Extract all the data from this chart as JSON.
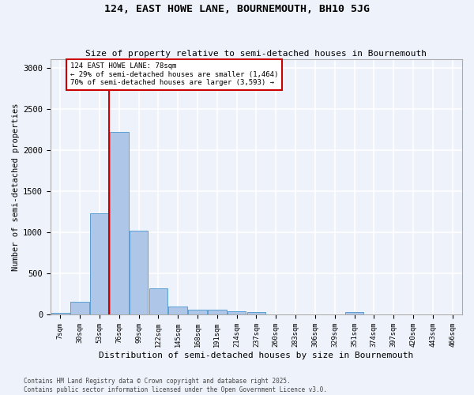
{
  "title": "124, EAST HOWE LANE, BOURNEMOUTH, BH10 5JG",
  "subtitle": "Size of property relative to semi-detached houses in Bournemouth",
  "xlabel": "Distribution of semi-detached houses by size in Bournemouth",
  "ylabel": "Number of semi-detached properties",
  "footnote": "Contains HM Land Registry data © Crown copyright and database right 2025.\nContains public sector information licensed under the Open Government Licence v3.0.",
  "bin_labels": [
    "7sqm",
    "30sqm",
    "53sqm",
    "76sqm",
    "99sqm",
    "122sqm",
    "145sqm",
    "168sqm",
    "191sqm",
    "214sqm",
    "237sqm",
    "260sqm",
    "283sqm",
    "306sqm",
    "329sqm",
    "351sqm",
    "374sqm",
    "397sqm",
    "420sqm",
    "443sqm",
    "466sqm"
  ],
  "bar_heights": [
    20,
    155,
    1230,
    2220,
    1020,
    315,
    95,
    60,
    55,
    40,
    30,
    0,
    0,
    0,
    0,
    30,
    0,
    0,
    0,
    0,
    0
  ],
  "bar_color": "#aec6e8",
  "bar_edge_color": "#5a9fd4",
  "background_color": "#eef2fb",
  "grid_color": "#ffffff",
  "red_line_bin": 3,
  "annotation_text": "124 EAST HOWE LANE: 78sqm\n← 29% of semi-detached houses are smaller (1,464)\n70% of semi-detached houses are larger (3,593) →",
  "annotation_box_color": "#ffffff",
  "annotation_box_edge": "#cc0000",
  "red_line_color": "#cc0000",
  "ylim": [
    0,
    3100
  ],
  "yticks": [
    0,
    500,
    1000,
    1500,
    2000,
    2500,
    3000
  ]
}
